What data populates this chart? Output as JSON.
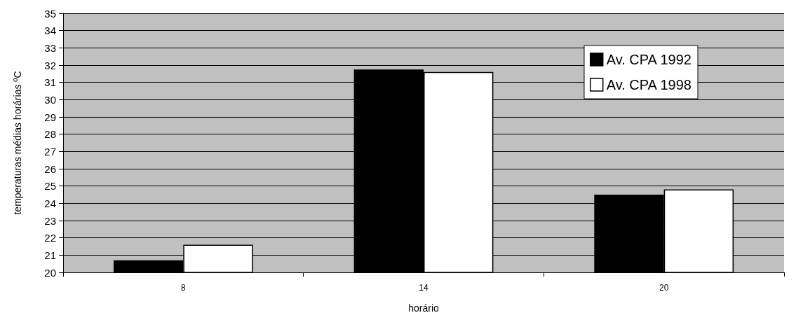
{
  "chart_data": {
    "type": "bar",
    "xlabel": "horário",
    "ylabel": "temperaturas médias horárias ºC",
    "categories": [
      "8",
      "14",
      "20"
    ],
    "series": [
      {
        "name": "Av. CPA 1992",
        "color": "#000000",
        "values": [
          20.7,
          31.75,
          24.5
        ]
      },
      {
        "name": "Av. CPA 1998",
        "color": "#ffffff",
        "values": [
          21.6,
          31.6,
          24.8
        ]
      }
    ],
    "ylim": [
      20,
      35
    ],
    "yticks": [
      20,
      21,
      22,
      23,
      24,
      25,
      26,
      27,
      28,
      29,
      30,
      31,
      32,
      33,
      34,
      35
    ],
    "grid": "y",
    "legend": "top right"
  }
}
